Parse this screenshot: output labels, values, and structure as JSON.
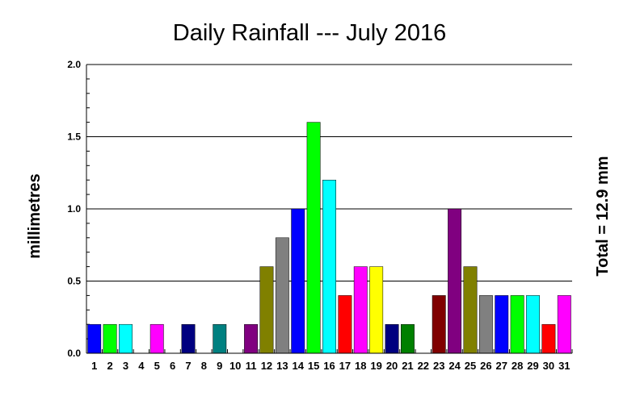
{
  "chart_data": {
    "type": "bar",
    "title": "Daily Rainfall --- July 2016",
    "xlabel": "",
    "ylabel": "millimetres",
    "annotation": "Total = 12.9 mm",
    "ylim": [
      0,
      2.0
    ],
    "yticks": [
      "0.0",
      "0.5",
      "1.0",
      "1.5",
      "2.0"
    ],
    "grid": true,
    "categories": [
      "1",
      "2",
      "3",
      "4",
      "5",
      "6",
      "7",
      "8",
      "9",
      "10",
      "11",
      "12",
      "13",
      "14",
      "15",
      "16",
      "17",
      "18",
      "19",
      "20",
      "21",
      "22",
      "23",
      "24",
      "25",
      "26",
      "27",
      "28",
      "29",
      "30",
      "31"
    ],
    "values": [
      0.2,
      0.2,
      0.2,
      0.0,
      0.2,
      0.0,
      0.2,
      0.0,
      0.2,
      0.0,
      0.2,
      0.6,
      0.8,
      1.0,
      1.6,
      1.2,
      0.4,
      0.6,
      0.6,
      0.2,
      0.2,
      0.0,
      0.4,
      1.0,
      0.6,
      0.4,
      0.4,
      0.4,
      0.4,
      0.2,
      0.4
    ],
    "colors": [
      "#0000ff",
      "#00ff00",
      "#00ffff",
      "#ff0000",
      "#ff00ff",
      "#ffff00",
      "#000080",
      "#008000",
      "#008080",
      "#800000",
      "#800080",
      "#808000",
      "#808080",
      "#0000ff",
      "#00ff00",
      "#00ffff",
      "#ff0000",
      "#ff00ff",
      "#ffff00",
      "#000080",
      "#008000",
      "#008080",
      "#800000",
      "#800080",
      "#808000",
      "#808080",
      "#0000ff",
      "#00ff00",
      "#00ffff",
      "#ff0000",
      "#ff00ff"
    ]
  }
}
